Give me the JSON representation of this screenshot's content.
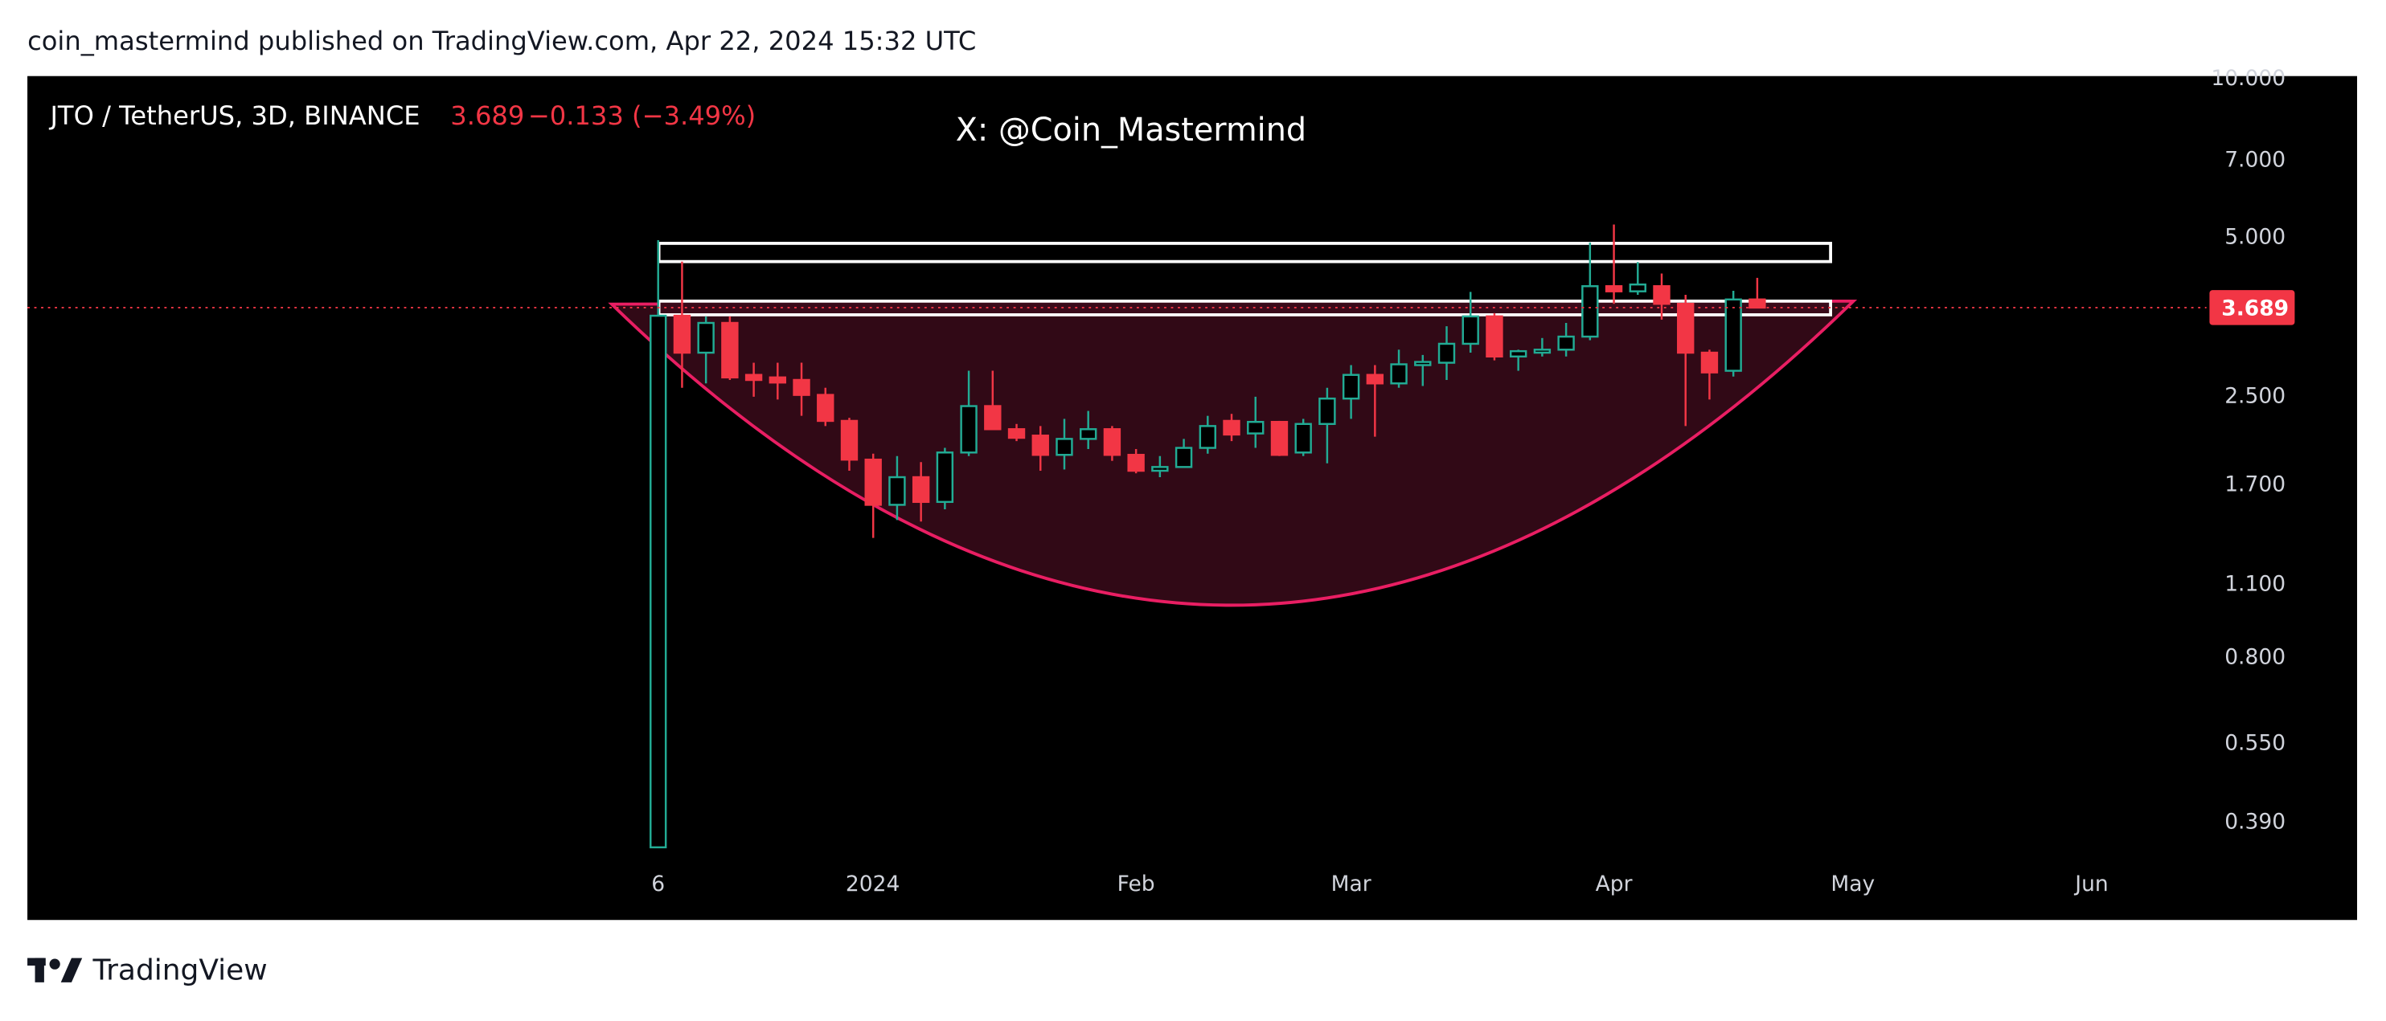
{
  "header": "coin_mastermind published on TradingView.com, Apr 22, 2024 15:32 UTC",
  "brand": "TradingView",
  "chart_data": {
    "type": "candlestick",
    "title": "JTO / TetherUS, 3D, BINANCE",
    "last_price": 3.689,
    "change_label": "−0.133 (−3.49%)",
    "watermark": "X: @Coin_Mastermind",
    "up_color": "#22ab94",
    "down_color": "#f23645",
    "log_scale": true,
    "open": [
      0.35,
      3.56,
      3.03,
      3.45,
      2.75,
      2.72,
      2.69,
      2.52,
      2.25,
      1.9,
      1.56,
      1.76,
      1.58,
      1.96,
      2.4,
      2.17,
      2.11,
      1.94,
      2.08,
      2.17,
      1.94,
      1.81,
      1.84,
      2.0,
      2.25,
      2.13,
      2.24,
      1.96,
      2.22,
      2.48,
      2.75,
      2.65,
      2.87,
      2.9,
      3.15,
      3.55,
      2.98,
      3.03,
      3.07,
      3.25,
      4.05,
      3.96,
      4.05,
      3.75,
      3.03,
      2.8,
      3.822
    ],
    "high": [
      4.95,
      4.51,
      3.55,
      3.55,
      2.9,
      2.9,
      2.9,
      2.6,
      2.28,
      1.95,
      1.93,
      1.88,
      2.0,
      2.8,
      2.8,
      2.22,
      2.2,
      2.27,
      2.35,
      2.2,
      1.99,
      1.93,
      2.08,
      2.3,
      2.32,
      2.5,
      2.25,
      2.27,
      2.6,
      2.87,
      2.87,
      3.07,
      3.0,
      3.4,
      3.95,
      3.6,
      3.07,
      3.23,
      3.45,
      4.9,
      5.3,
      4.5,
      4.28,
      3.9,
      3.07,
      3.97,
      4.2
    ],
    "low": [
      0.35,
      2.6,
      2.65,
      2.69,
      2.5,
      2.47,
      2.3,
      2.2,
      1.81,
      1.35,
      1.46,
      1.45,
      1.53,
      1.93,
      2.17,
      2.06,
      1.81,
      1.82,
      1.99,
      1.89,
      1.79,
      1.76,
      1.84,
      1.95,
      2.06,
      2.0,
      1.93,
      1.93,
      1.87,
      2.27,
      2.1,
      2.6,
      2.62,
      2.69,
      3.03,
      2.93,
      2.8,
      2.98,
      2.98,
      3.2,
      3.75,
      3.9,
      3.5,
      2.2,
      2.47,
      2.73,
      3.68
    ],
    "close": [
      3.56,
      3.03,
      3.45,
      2.72,
      2.69,
      2.66,
      2.52,
      2.25,
      1.9,
      1.56,
      1.76,
      1.58,
      1.96,
      2.4,
      2.17,
      2.09,
      1.94,
      2.08,
      2.17,
      1.94,
      1.81,
      1.84,
      2.0,
      2.2,
      2.12,
      2.24,
      1.94,
      2.22,
      2.48,
      2.75,
      2.65,
      2.88,
      2.91,
      3.15,
      3.55,
      2.98,
      3.05,
      3.07,
      3.25,
      4.05,
      3.96,
      4.08,
      3.75,
      3.03,
      2.78,
      3.822,
      3.689
    ],
    "ylim": [
      0.328,
      10.13
    ],
    "yticks": [
      {
        "value": 10,
        "label": "10.000"
      },
      {
        "value": 7,
        "label": "7.000"
      },
      {
        "value": 5,
        "label": "5.000"
      },
      {
        "value": 2.5,
        "label": "2.500"
      },
      {
        "value": 1.7,
        "label": "1.700"
      },
      {
        "value": 1.1,
        "label": "1.100"
      },
      {
        "value": 0.8,
        "label": "0.800"
      },
      {
        "value": 0.55,
        "label": "0.550"
      },
      {
        "value": 0.39,
        "label": "0.390"
      }
    ],
    "xlim": [
      -26.4,
      64.8
    ],
    "xticks": [
      {
        "value": 0,
        "label": "6"
      },
      {
        "value": 8.98,
        "label": "2024"
      },
      {
        "value": 20,
        "label": "Feb"
      },
      {
        "value": 29,
        "label": "Mar"
      },
      {
        "value": 40,
        "label": "Apr"
      },
      {
        "value": 50,
        "label": "May"
      },
      {
        "value": 60,
        "label": "Jun"
      }
    ]
  }
}
